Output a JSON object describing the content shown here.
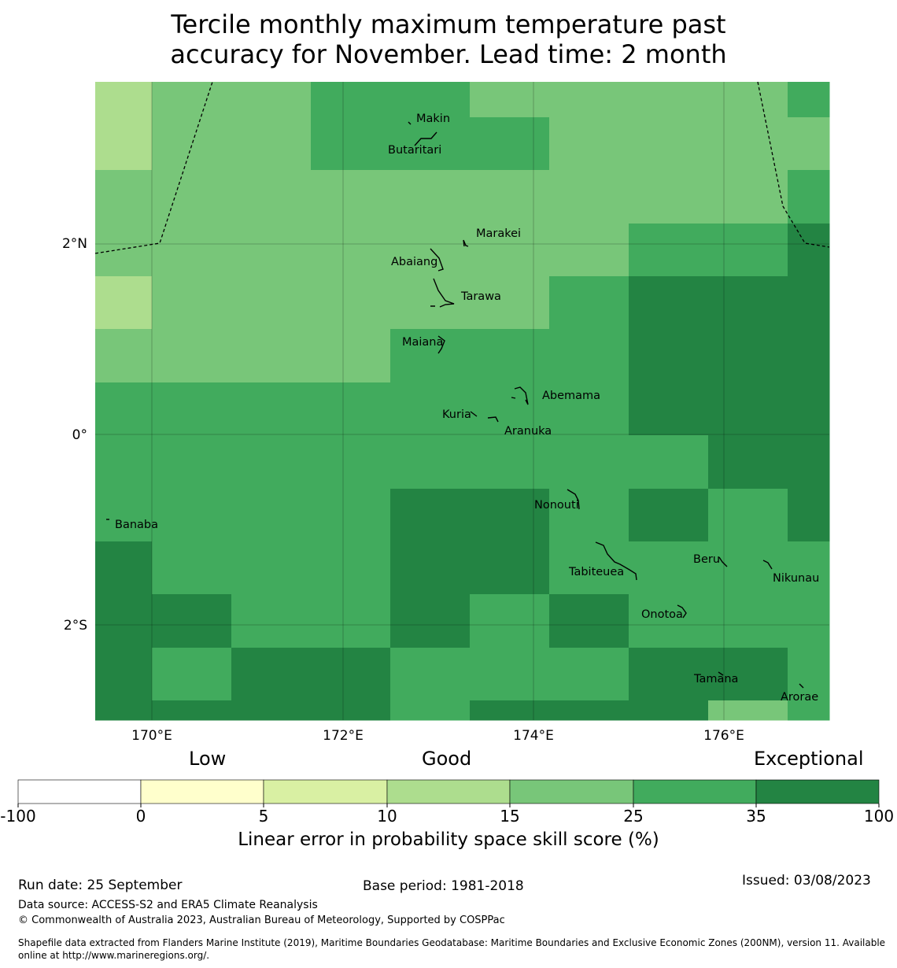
{
  "title": {
    "line1": "Tercile monthly maximum temperature past",
    "line2": "accuracy for November. Lead time: 2 month"
  },
  "map": {
    "lat_labels": [
      "2°N",
      "0°",
      "2°S"
    ],
    "lon_labels": [
      "170°E",
      "172°E",
      "174°E",
      "176°E"
    ],
    "islands": [
      {
        "name": "Makin"
      },
      {
        "name": "Butaritari"
      },
      {
        "name": "Marakei"
      },
      {
        "name": "Abaiang"
      },
      {
        "name": "Tarawa"
      },
      {
        "name": "Maiana"
      },
      {
        "name": "Abemama"
      },
      {
        "name": "Kuria"
      },
      {
        "name": "Aranuka"
      },
      {
        "name": "Nonouti"
      },
      {
        "name": "Banaba"
      },
      {
        "name": "Beru"
      },
      {
        "name": "Tabiteuea"
      },
      {
        "name": "Nikunau"
      },
      {
        "name": "Onotoa"
      },
      {
        "name": "Tamana"
      },
      {
        "name": "Arorae"
      }
    ],
    "skill_class_grid": [
      [
        3,
        4,
        4,
        5,
        5,
        4,
        4,
        4,
        4,
        5
      ],
      [
        3,
        4,
        4,
        5,
        5,
        5,
        4,
        4,
        4,
        4
      ],
      [
        4,
        4,
        4,
        4,
        4,
        4,
        4,
        4,
        4,
        5
      ],
      [
        4,
        4,
        4,
        4,
        4,
        4,
        4,
        5,
        5,
        6
      ],
      [
        3,
        4,
        4,
        4,
        4,
        4,
        5,
        6,
        6,
        6
      ],
      [
        4,
        4,
        4,
        4,
        5,
        5,
        5,
        6,
        6,
        6
      ],
      [
        5,
        5,
        5,
        5,
        5,
        5,
        5,
        6,
        6,
        6
      ],
      [
        5,
        5,
        5,
        5,
        5,
        5,
        5,
        5,
        6,
        6
      ],
      [
        5,
        5,
        5,
        5,
        6,
        6,
        5,
        6,
        5,
        6
      ],
      [
        6,
        5,
        5,
        5,
        6,
        6,
        5,
        5,
        5,
        5
      ],
      [
        6,
        6,
        5,
        5,
        6,
        5,
        6,
        5,
        5,
        5
      ],
      [
        6,
        5,
        6,
        6,
        5,
        5,
        5,
        6,
        6,
        5
      ],
      [
        6,
        6,
        6,
        6,
        5,
        6,
        6,
        6,
        4,
        5
      ]
    ]
  },
  "colorbar": {
    "category_labels": [
      "Low",
      "Good",
      "Exceptional"
    ],
    "ticks": [
      "-100",
      "0",
      "5",
      "10",
      "15",
      "25",
      "35",
      "100"
    ],
    "colors": [
      "#ffffff",
      "#ffffcc",
      "#d9f0a3",
      "#addd8e",
      "#78c679",
      "#41ab5d",
      "#238443"
    ],
    "label": "Linear error in probability space skill score (%)"
  },
  "footer": {
    "run_date": "Run date: 25 September",
    "base_period": "Base period: 1981-2018",
    "issued": "Issued: 03/08/2023",
    "data_source": "Data source: ACCESS-S2 and ERA5 Climate Reanalysis",
    "copyright": "© Commonwealth of Australia 2023, Australian Bureau of Meteorology, Supported by COSPPac",
    "shapefile_line1": "Shapefile data extracted from Flanders Marine Institute (2019), Maritime Boundaries Geodatabase: Maritime Boundaries and Exclusive Economic Zones (200NM), version 11. Available",
    "shapefile_line2": "online at http://www.marineregions.org/."
  }
}
